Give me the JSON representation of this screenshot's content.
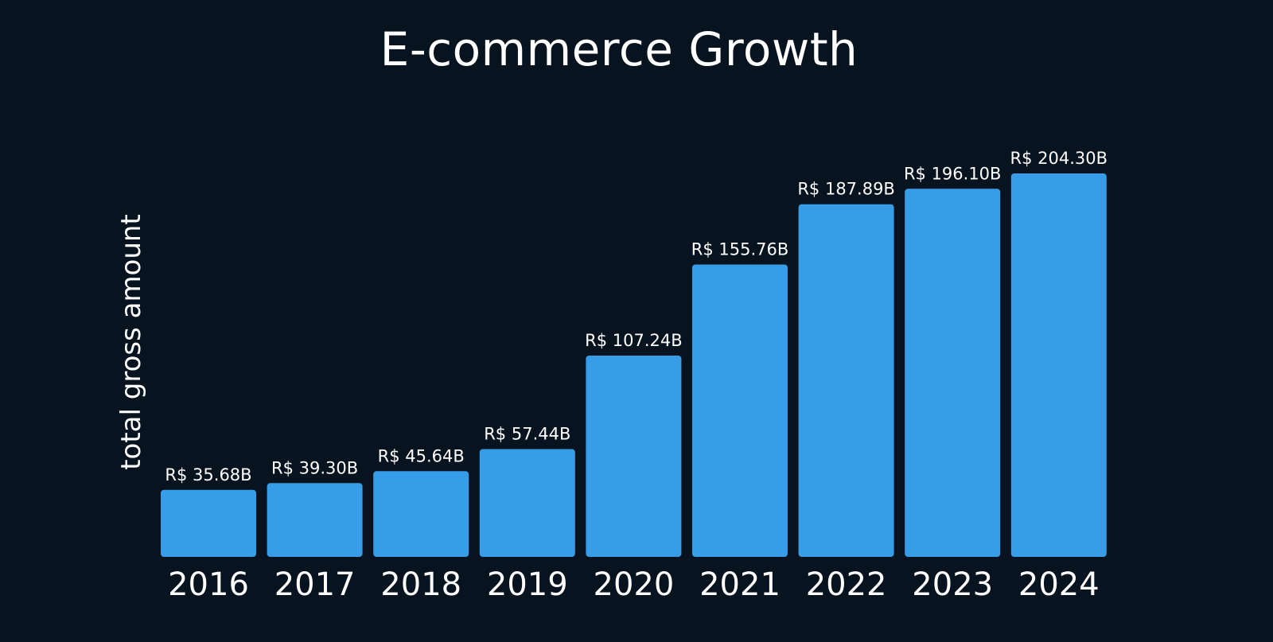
{
  "chart_data": {
    "type": "bar",
    "title": "E-commerce Growth",
    "xlabel": "",
    "ylabel": "total gross amount",
    "categories": [
      "2016",
      "2017",
      "2018",
      "2019",
      "2020",
      "2021",
      "2022",
      "2023",
      "2024"
    ],
    "values": [
      35.68,
      39.3,
      45.64,
      57.44,
      107.24,
      155.76,
      187.89,
      196.1,
      204.3
    ],
    "data_labels": [
      "R$ 35.68B",
      "R$ 39.30B",
      "R$ 45.64B",
      "R$ 57.44B",
      "R$ 107.24B",
      "R$ 155.76B",
      "R$ 187.89B",
      "R$ 196.10B",
      "R$ 204.30B"
    ],
    "ylim": [
      0,
      204.3
    ],
    "grid": false,
    "legend": "none",
    "colors": {
      "background": "#07131f",
      "bar": "#379de8",
      "text": "#ffffff"
    }
  }
}
